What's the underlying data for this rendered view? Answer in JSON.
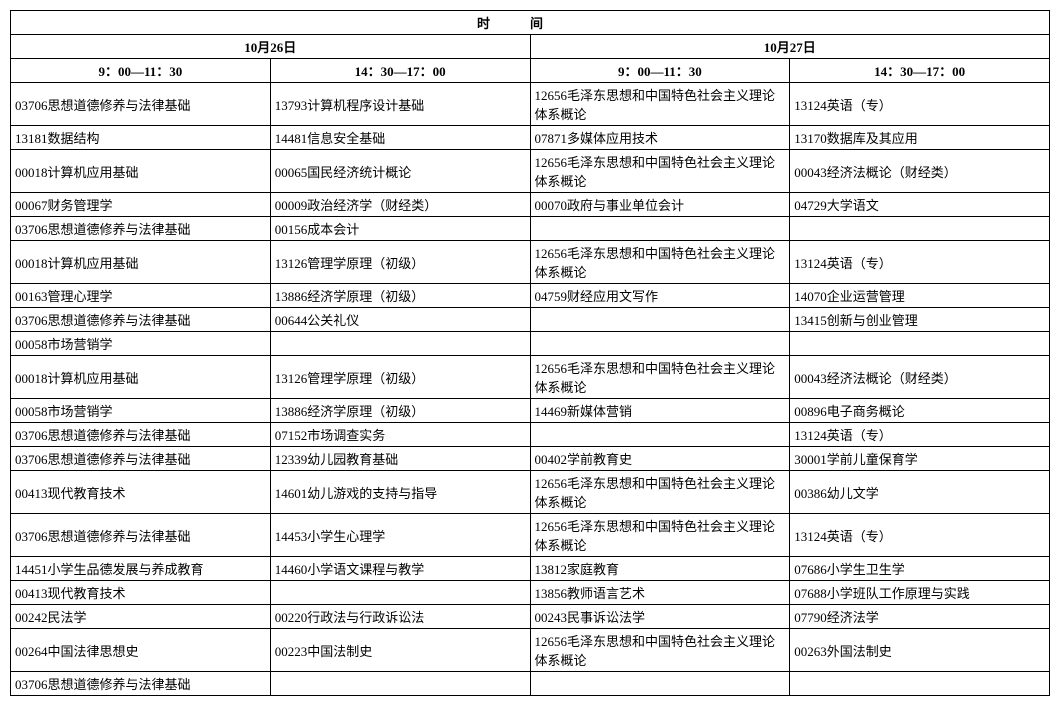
{
  "header": {
    "title": "时间",
    "day1": "10月26日",
    "day2": "10月27日",
    "slot1": "9：00—11：30",
    "slot2": "14：30—17：00",
    "slot3": "9：00—11：30",
    "slot4": "14：30—17：00"
  },
  "cells": {
    "r1c1": "03706思想道德修养与法律基础",
    "r1c2": "13793计算机程序设计基础",
    "r1c3": "12656毛泽东思想和中国特色社会主义理论体系概论",
    "r1c4": "13124英语（专）",
    "r2c1": "13181数据结构",
    "r2c2": "14481信息安全基础",
    "r2c3": "07871多媒体应用技术",
    "r2c4": "13170数据库及其应用",
    "r3c1": "00018计算机应用基础",
    "r3c2": "00065国民经济统计概论",
    "r3c3": "12656毛泽东思想和中国特色社会主义理论体系概论",
    "r3c4": "00043经济法概论（财经类）",
    "r4c1": "00067财务管理学",
    "r4c2": "00009政治经济学（财经类）",
    "r4c3": "00070政府与事业单位会计",
    "r4c4": "04729大学语文",
    "r5c1": "03706思想道德修养与法律基础",
    "r5c2": "00156成本会计",
    "r6c1": "00018计算机应用基础",
    "r6c2": "13126管理学原理（初级）",
    "r6c3": "12656毛泽东思想和中国特色社会主义理论体系概论",
    "r6c4": "13124英语（专）",
    "r7c1": "00163管理心理学",
    "r7c2": "13886经济学原理（初级）",
    "r7c3": "04759财经应用文写作",
    "r7c4": "14070企业运营管理",
    "r8c1": "03706思想道德修养与法律基础",
    "r8c2": "00644公关礼仪",
    "r8c4": "13415创新与创业管理",
    "r9c1": "00058市场营销学",
    "r10c1": "00018计算机应用基础",
    "r10c2": "13126管理学原理（初级）",
    "r10c3": "12656毛泽东思想和中国特色社会主义理论体系概论",
    "r10c4": "00043经济法概论（财经类）",
    "r11c1": "00058市场营销学",
    "r11c2": "13886经济学原理（初级）",
    "r11c3": "14469新媒体营销",
    "r11c4": "00896电子商务概论",
    "r12c1": "03706思想道德修养与法律基础",
    "r12c2": "07152市场调查实务",
    "r12c4": "13124英语（专）",
    "r13c1": "03706思想道德修养与法律基础",
    "r13c2": "12339幼儿园教育基础",
    "r13c3": "00402学前教育史",
    "r13c4": "30001学前儿童保育学",
    "r14c1": "00413现代教育技术",
    "r14c2": "14601幼儿游戏的支持与指导",
    "r14c3": "12656毛泽东思想和中国特色社会主义理论体系概论",
    "r14c4": "00386幼儿文学",
    "r15c1": "03706思想道德修养与法律基础",
    "r15c2": "14453小学生心理学",
    "r15c3": "12656毛泽东思想和中国特色社会主义理论体系概论",
    "r15c4": "13124英语（专）",
    "r16c1": "14451小学生品德发展与养成教育",
    "r16c2": "14460小学语文课程与教学",
    "r16c3": "13812家庭教育",
    "r16c4": "07686小学生卫生学",
    "r17c1": "00413现代教育技术",
    "r17c3": "13856教师语言艺术",
    "r17c4": "07688小学班队工作原理与实践",
    "r18c1": "00242民法学",
    "r18c2": "00220行政法与行政诉讼法",
    "r18c3": "00243民事诉讼法学",
    "r18c4": "07790经济法学",
    "r19c1": "00264中国法律思想史",
    "r19c2": "00223中国法制史",
    "r19c3": "12656毛泽东思想和中国特色社会主义理论体系概论",
    "r19c4": "00263外国法制史",
    "r20c1": "03706思想道德修养与法律基础"
  }
}
